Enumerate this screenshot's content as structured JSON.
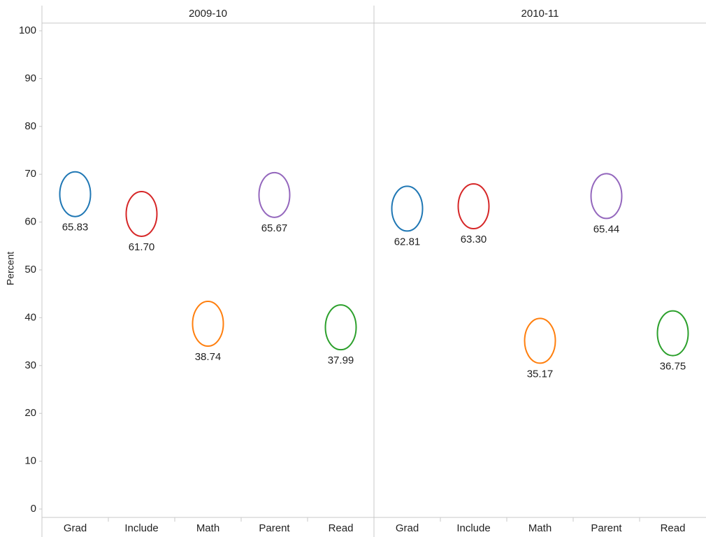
{
  "chart_data": {
    "type": "dot",
    "ylabel": "Percent",
    "ylim": [
      0,
      100
    ],
    "yticks": [
      0,
      10,
      20,
      30,
      40,
      50,
      60,
      70,
      80,
      90,
      100
    ],
    "categories": [
      "Grad",
      "Include",
      "Math",
      "Parent",
      "Read"
    ],
    "colors": [
      "#1f77b4",
      "#d62728",
      "#ff7f0e",
      "#9467bd",
      "#2ca02c"
    ],
    "panels": [
      {
        "title": "2009-10",
        "values": [
          65.83,
          61.7,
          38.74,
          65.67,
          37.99
        ],
        "value_labels": [
          "65.83",
          "61.70",
          "38.74",
          "65.67",
          "37.99"
        ]
      },
      {
        "title": "2010-11",
        "values": [
          62.81,
          63.3,
          35.17,
          65.44,
          36.75
        ],
        "value_labels": [
          "62.81",
          "63.30",
          "35.17",
          "65.44",
          "36.75"
        ]
      }
    ]
  }
}
